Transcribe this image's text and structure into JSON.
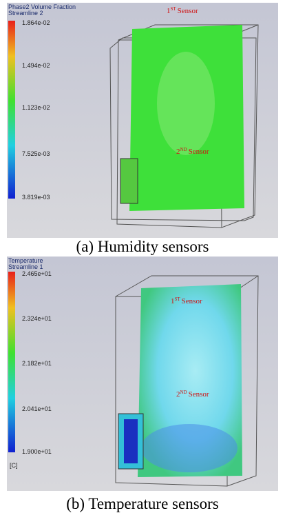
{
  "panels": [
    {
      "legend": {
        "title": "Phase2 Volume Fraction",
        "subtitle": "Streamline 2",
        "ticks": [
          "1.864e-02",
          "1.494e-02",
          "1.123e-02",
          "7.525e-03",
          "3.819e-03"
        ]
      },
      "sensors": [
        {
          "number": "1",
          "suffix": "ST",
          "text": "Sensor"
        },
        {
          "number": "2",
          "suffix": "ND",
          "text": "Sensor"
        }
      ],
      "caption": "(a)  Humidity sensors"
    },
    {
      "legend": {
        "title": "Temperature",
        "subtitle": "Streamline 1",
        "ticks": [
          "2.465e+01",
          "2.324e+01",
          "2.182e+01",
          "2.041e+01",
          "1.900e+01"
        ],
        "unit": "[C]"
      },
      "sensors": [
        {
          "number": "1",
          "suffix": "ST",
          "text": "Sensor"
        },
        {
          "number": "2",
          "suffix": "ND",
          "text": "Sensor"
        }
      ],
      "caption": "(b) Temperature sensors"
    }
  ]
}
